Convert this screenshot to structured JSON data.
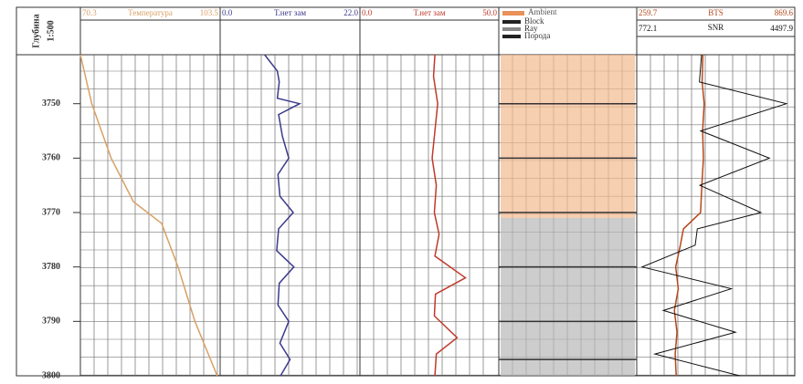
{
  "depth_axis": {
    "title": "Глубина",
    "scale": "1:500",
    "ylim": [
      3741,
      3800
    ],
    "yticks": [
      3750,
      3760,
      3770,
      3780,
      3790,
      3800
    ]
  },
  "chart_data": [
    {
      "type": "line",
      "title": "Температура",
      "color": "#d9a066",
      "xticks": [
        {
          "value": 70.3,
          "label": "70.3"
        },
        {
          "value": 103.5,
          "label": "103.5"
        }
      ],
      "xlim": [
        70.3,
        103.5
      ],
      "y": [
        3741,
        3750,
        3760,
        3768,
        3772,
        3780,
        3790,
        3800
      ],
      "series": [
        {
          "color": "#d9a066",
          "values": [
            70.3,
            73,
            77.6,
            82.9,
            89.6,
            93.5,
            97.5,
            102.8
          ]
        }
      ]
    },
    {
      "type": "line",
      "title": "Т.нет зам",
      "color": "#3a3a8c",
      "xticks": [
        {
          "value": 0,
          "label": "0.0"
        },
        {
          "value": 22,
          "label": "22.0"
        }
      ],
      "xlim": [
        0,
        22
      ],
      "y": [
        3741,
        3744,
        3746,
        3749,
        3750,
        3752,
        3756,
        3760,
        3763,
        3767,
        3770,
        3773,
        3777,
        3780,
        3783,
        3787,
        3790,
        3794,
        3797,
        3800
      ],
      "series": [
        {
          "color": "#3a3a8c",
          "values": [
            7,
            9,
            9.3,
            9,
            12.5,
            9.2,
            9.8,
            10.8,
            9.1,
            9.4,
            11.5,
            9.2,
            8.9,
            11.6,
            9.3,
            9.1,
            10.8,
            9.4,
            11,
            9.5
          ]
        }
      ]
    },
    {
      "type": "line",
      "title": "Т.нет зам",
      "color": "#c0392b",
      "xticks": [
        {
          "value": 0,
          "label": "0.0"
        },
        {
          "value": 50,
          "label": "50.0"
        }
      ],
      "xlim": [
        0,
        50
      ],
      "y": [
        3741,
        3745,
        3750,
        3755,
        3760,
        3765,
        3770,
        3774,
        3778,
        3782,
        3785,
        3789,
        3793,
        3796,
        3800
      ],
      "series": [
        {
          "color": "#c0392b",
          "values": [
            27,
            26.5,
            28,
            27,
            26,
            27.5,
            26.8,
            28.5,
            27,
            38,
            27.2,
            26.8,
            35,
            27.5,
            27
          ]
        }
      ]
    },
    {
      "type": "image",
      "title": "Ambient",
      "legend": [
        "Block",
        "Ray",
        "Порода"
      ]
    },
    {
      "type": "line",
      "title": "BTS",
      "color": "#b5481c",
      "xticks": [
        {
          "value": 259.7,
          "label": "259.7"
        },
        {
          "value": 869.6,
          "label": "869.6"
        }
      ],
      "xlim": [
        259.7,
        869.6
      ],
      "y": [
        3741,
        3746,
        3750,
        3755,
        3760,
        3765,
        3770,
        3773,
        3776,
        3780,
        3784,
        3788,
        3792,
        3796,
        3800
      ],
      "series": [
        {
          "color": "#b5481c",
          "values": [
            515,
            512,
            520,
            514,
            517,
            511,
            506,
            440,
            428,
            410,
            420,
            405,
            415,
            408,
            412
          ]
        },
        {
          "name": "SNR",
          "color": "#111111",
          "xlim": [
            772.1,
            4497.9
          ],
          "xticks": [
            {
              "value": 772.1,
              "label": "772.1"
            },
            {
              "value": 4497.9,
              "label": "4497.9"
            }
          ],
          "values": [
            2300,
            2250,
            4300,
            2280,
            3900,
            2260,
            3700,
            2200,
            2150,
            900,
            3000,
            1400,
            3100,
            1200,
            3200
          ]
        }
      ]
    }
  ]
}
